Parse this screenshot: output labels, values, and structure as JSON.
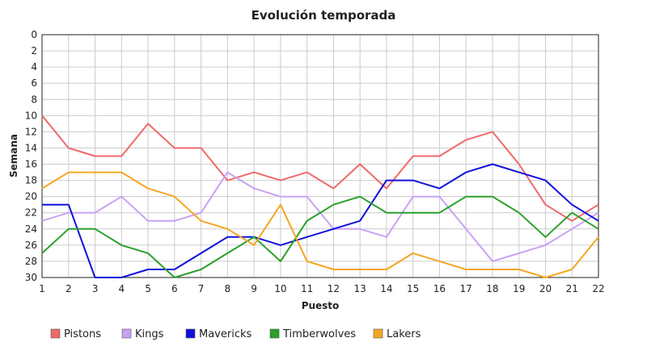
{
  "chart_data": {
    "type": "line",
    "title": "Evolución temporada",
    "xlabel": "Puesto",
    "ylabel": "Semana",
    "x": [
      1,
      2,
      3,
      4,
      5,
      6,
      7,
      8,
      9,
      10,
      11,
      12,
      13,
      14,
      15,
      16,
      17,
      18,
      19,
      20,
      21,
      22
    ],
    "xlim": [
      1,
      22
    ],
    "ylim": [
      0,
      30
    ],
    "y_inverted": true,
    "y_ticks": [
      0,
      2,
      4,
      6,
      8,
      10,
      12,
      14,
      16,
      18,
      20,
      22,
      24,
      26,
      28,
      30
    ],
    "grid": true,
    "legend_position": "bottom-left",
    "series": [
      {
        "name": "Pistons",
        "color": "#ef6a6a",
        "values": [
          10,
          14,
          15,
          15,
          11,
          14,
          14,
          18,
          17,
          18,
          17,
          19,
          16,
          19,
          15,
          15,
          13,
          12,
          16,
          21,
          23,
          21
        ]
      },
      {
        "name": "Kings",
        "color": "#c8a2f5",
        "values": [
          23,
          22,
          22,
          20,
          23,
          23,
          22,
          17,
          19,
          20,
          20,
          24,
          24,
          25,
          20,
          20,
          24,
          28,
          27,
          26,
          24,
          22
        ]
      },
      {
        "name": "Mavericks",
        "color": "#1010dd",
        "values": [
          21,
          21,
          30,
          30,
          29,
          29,
          27,
          25,
          25,
          26,
          25,
          24,
          23,
          18,
          18,
          19,
          17,
          16,
          17,
          18,
          21,
          23
        ]
      },
      {
        "name": "Timberwolves",
        "color": "#2aa02a",
        "values": [
          27,
          24,
          24,
          26,
          27,
          30,
          29,
          27,
          25,
          28,
          23,
          21,
          20,
          22,
          22,
          22,
          20,
          20,
          22,
          25,
          22,
          24
        ]
      },
      {
        "name": "Lakers",
        "color": "#f5a623",
        "values": [
          19,
          17,
          17,
          17,
          19,
          20,
          23,
          24,
          26,
          21,
          28,
          29,
          29,
          29,
          27,
          28,
          29,
          29,
          29,
          30,
          29,
          25
        ]
      }
    ]
  }
}
